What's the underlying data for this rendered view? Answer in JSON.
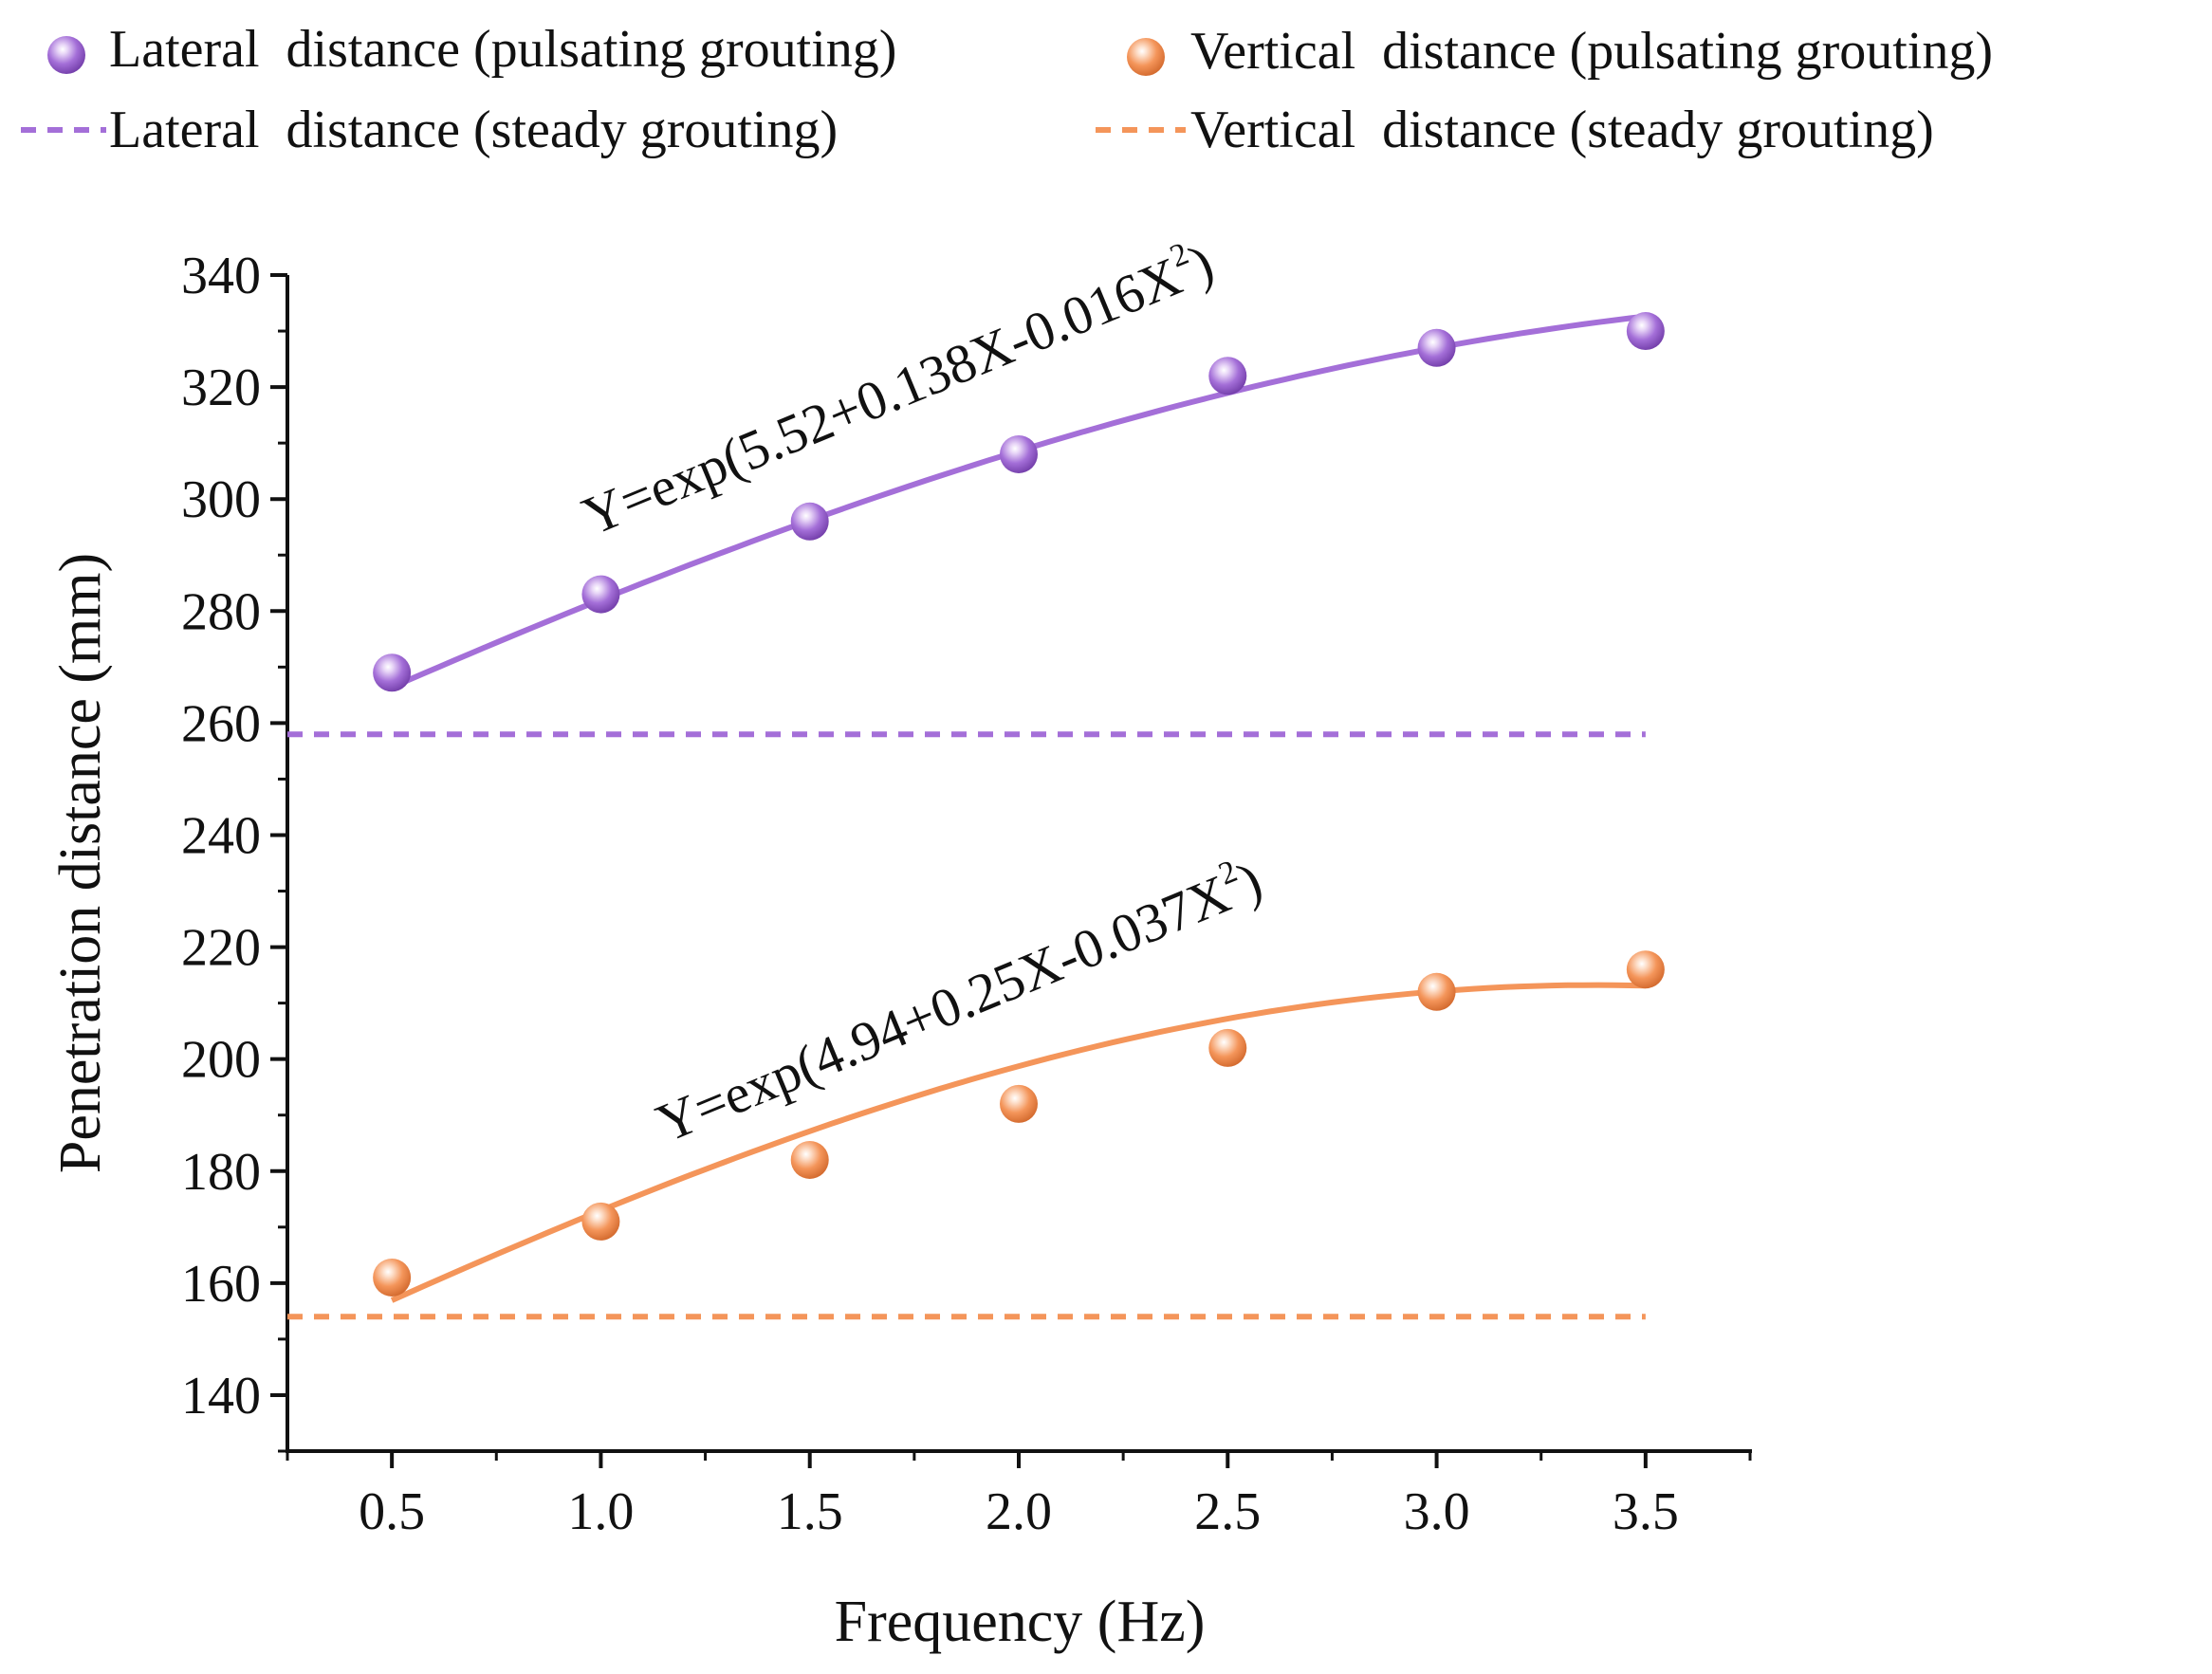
{
  "chart_data": {
    "type": "line",
    "xlabel": "Frequency (Hz)",
    "ylabel": "Penetration distance (mm)",
    "xlim": [
      0.25,
      3.75
    ],
    "ylim": [
      130,
      340
    ],
    "xticks": [
      "0.5",
      "1.0",
      "1.5",
      "2.0",
      "2.5",
      "3.0",
      "3.5"
    ],
    "yticks": [
      "140",
      "160",
      "180",
      "200",
      "220",
      "240",
      "260",
      "280",
      "300",
      "320",
      "340"
    ],
    "x": [
      0.5,
      1.0,
      1.5,
      2.0,
      2.5,
      3.0,
      3.5
    ],
    "series": [
      {
        "name": "Lateral  distance (pulsating grouting)",
        "values": [
          269,
          283,
          296,
          308,
          322,
          327,
          330
        ],
        "color": "#a46fd8",
        "marker": "sphere",
        "fit_equation": "Y=exp(5.52+0.138X-0.016X",
        "fit_exponent": "2",
        "fit_close": ")",
        "fit": {
          "a": 5.52,
          "b": 0.138,
          "c": -0.016
        }
      },
      {
        "name": "Vertical  distance (pulsating grouting)",
        "values": [
          161,
          171,
          182,
          192,
          202,
          212,
          216
        ],
        "color": "#f4955a",
        "marker": "sphere",
        "fit_equation": "Y=exp(4.94+0.25X-0.037X",
        "fit_exponent": "2",
        "fit_close": ")",
        "fit": {
          "a": 4.94,
          "b": 0.25,
          "c": -0.037
        }
      }
    ],
    "reference_lines": [
      {
        "name": "Lateral  distance (steady grouting)",
        "value": 258,
        "color": "#a46fd8",
        "style": "dashed"
      },
      {
        "name": "Vertical  distance (steady grouting)",
        "value": 154,
        "color": "#f4955a",
        "style": "dashed"
      }
    ],
    "legend_position": "top"
  }
}
